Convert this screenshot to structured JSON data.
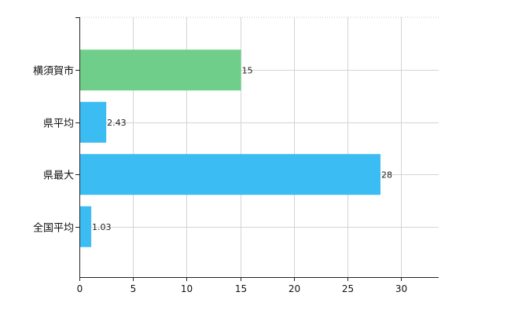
{
  "chart_data": {
    "type": "bar",
    "orientation": "horizontal",
    "categories": [
      "横須賀市",
      "県平均",
      "県最大",
      "全国平均"
    ],
    "values": [
      15,
      2.43,
      28,
      1.03
    ],
    "data_labels": [
      "15",
      "2.43",
      "28",
      "1.03"
    ],
    "bar_colors": [
      "#6fcf8a",
      "#3bbcf2",
      "#3bbcf2",
      "#3bbcf2"
    ],
    "xlim": [
      0,
      33.5
    ],
    "x_ticks": [
      0,
      5,
      10,
      15,
      20,
      25,
      30
    ],
    "x_tick_labels": [
      "0",
      "5",
      "10",
      "15",
      "20",
      "25",
      "30"
    ],
    "title": "",
    "xlabel": "",
    "ylabel": "",
    "grid": true,
    "legend": "none"
  }
}
